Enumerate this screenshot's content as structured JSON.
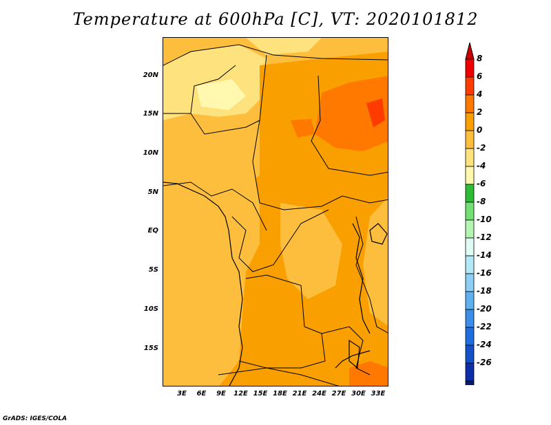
{
  "title": "Temperature at 600hPa [C], VT: 2020101812",
  "credit": "GrADS: IGES/COLA",
  "lat_labels": [
    "20N",
    "15N",
    "10N",
    "5N",
    "EQ",
    "5S",
    "10S",
    "15S"
  ],
  "lon_labels": [
    "3E",
    "6E",
    "9E",
    "12E",
    "15E",
    "18E",
    "21E",
    "24E",
    "27E",
    "30E",
    "33E"
  ],
  "colorbar": {
    "labels": [
      "8",
      "6",
      "4",
      "2",
      "0",
      "-2",
      "-4",
      "-6",
      "-8",
      "-10",
      "-12",
      "-14",
      "-16",
      "-18",
      "-20",
      "-22",
      "-24",
      "-26"
    ],
    "colors": [
      "#f00000",
      "#ff3c00",
      "#ff7800",
      "#fa9f00",
      "#fcbe3c",
      "#fde27e",
      "#fff8ae",
      "#2ebb35",
      "#74e073",
      "#b4f6b1",
      "#e0fbf4",
      "#b5e8f7",
      "#8ccef4",
      "#5fb0ef",
      "#3c8de8",
      "#1e6ee0",
      "#1450c8",
      "#0c2fa8",
      "#0a1a6e"
    ],
    "over_color": "#c80000",
    "under_color": "#dcd2f5"
  }
}
